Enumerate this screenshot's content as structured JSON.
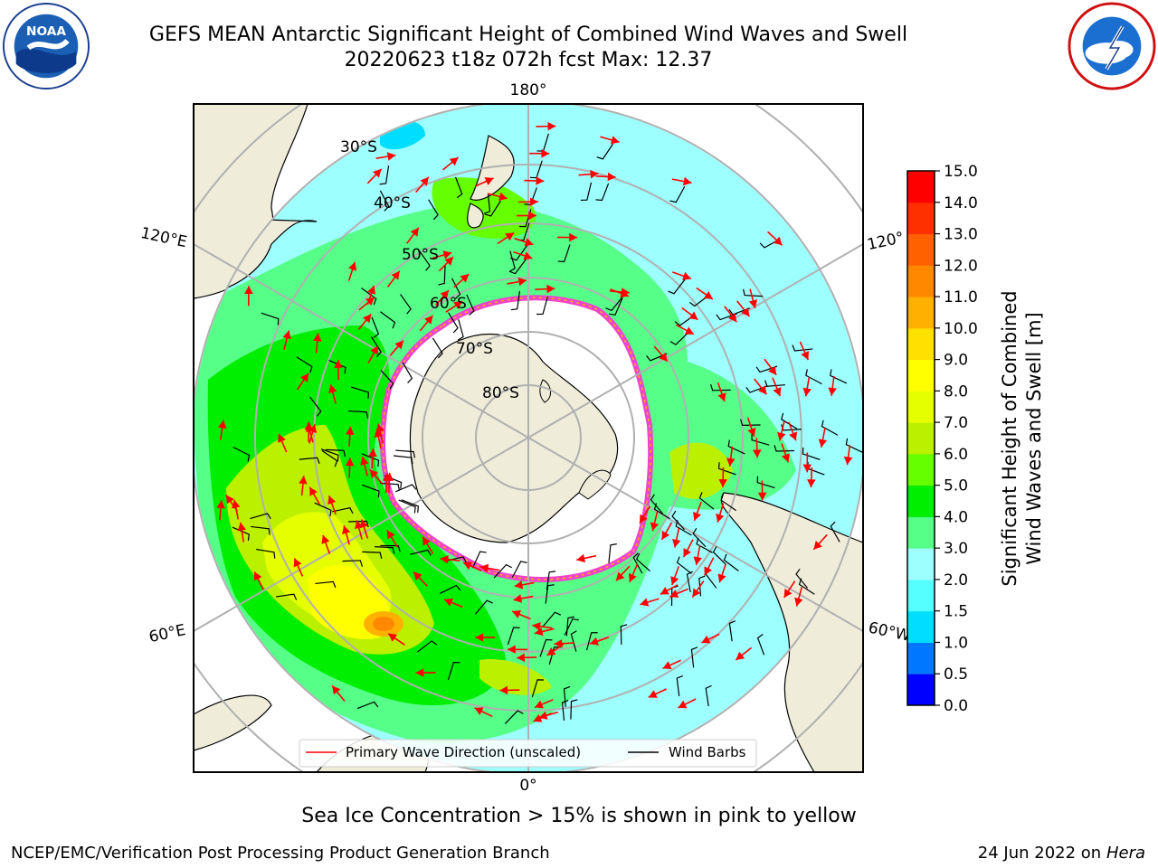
{
  "title_line1": "GEFS MEAN Antarctic Significant Height of Combined Wind Waves and Swell",
  "title_line2": "20220623 t18z 072h fcst   Max: 12.37",
  "logos": {
    "left": "noaa-logo",
    "left_text": "NOAA",
    "right": "nws-logo"
  },
  "map_labels": {
    "lon_top": "180°",
    "lon_bottom": "0°",
    "lon_left_upper": "120°E",
    "lon_left_lower": "60°E",
    "lon_right_upper": "120°",
    "lon_right_lower": "60°W",
    "lat": [
      "30°S",
      "40°S",
      "50°S",
      "60°S",
      "70°S",
      "80°S"
    ]
  },
  "legend": {
    "wave": "Primary Wave Direction (unscaled)",
    "barbs": "Wind Barbs"
  },
  "colorbar": {
    "title_line1": "Significant Height of Combined",
    "title_line2": "Wind Waves and Swell [m]",
    "ticks": [
      "0.0",
      "0.5",
      "1.0",
      "1.5",
      "2.0",
      "3.0",
      "4.0",
      "5.0",
      "6.0",
      "7.0",
      "8.0",
      "9.0",
      "10.0",
      "11.0",
      "12.0",
      "13.0",
      "14.0",
      "15.0"
    ],
    "colors": [
      "#0000ff",
      "#0077ff",
      "#00ddff",
      "#55ffff",
      "#9effff",
      "#55ff88",
      "#00ee00",
      "#66ff00",
      "#bbf000",
      "#e5ff00",
      "#ffff00",
      "#ffe000",
      "#ffb000",
      "#ff8800",
      "#ff6000",
      "#ff3000",
      "#ff0000"
    ]
  },
  "colors": {
    "land": "#efedda",
    "ice": "#ffffff",
    "ice_edge": "#ee44cc",
    "wave_arrow": "#ff0000",
    "barb": "#000000",
    "grid": "#b0b0b0"
  },
  "footer_note": "Sea Ice Concentration > 15% is shown in pink to yellow",
  "credit": "NCEP/EMC/Verification Post Processing Product Generation Branch",
  "date": "24 Jun 2022 on",
  "machine": "Hera"
}
